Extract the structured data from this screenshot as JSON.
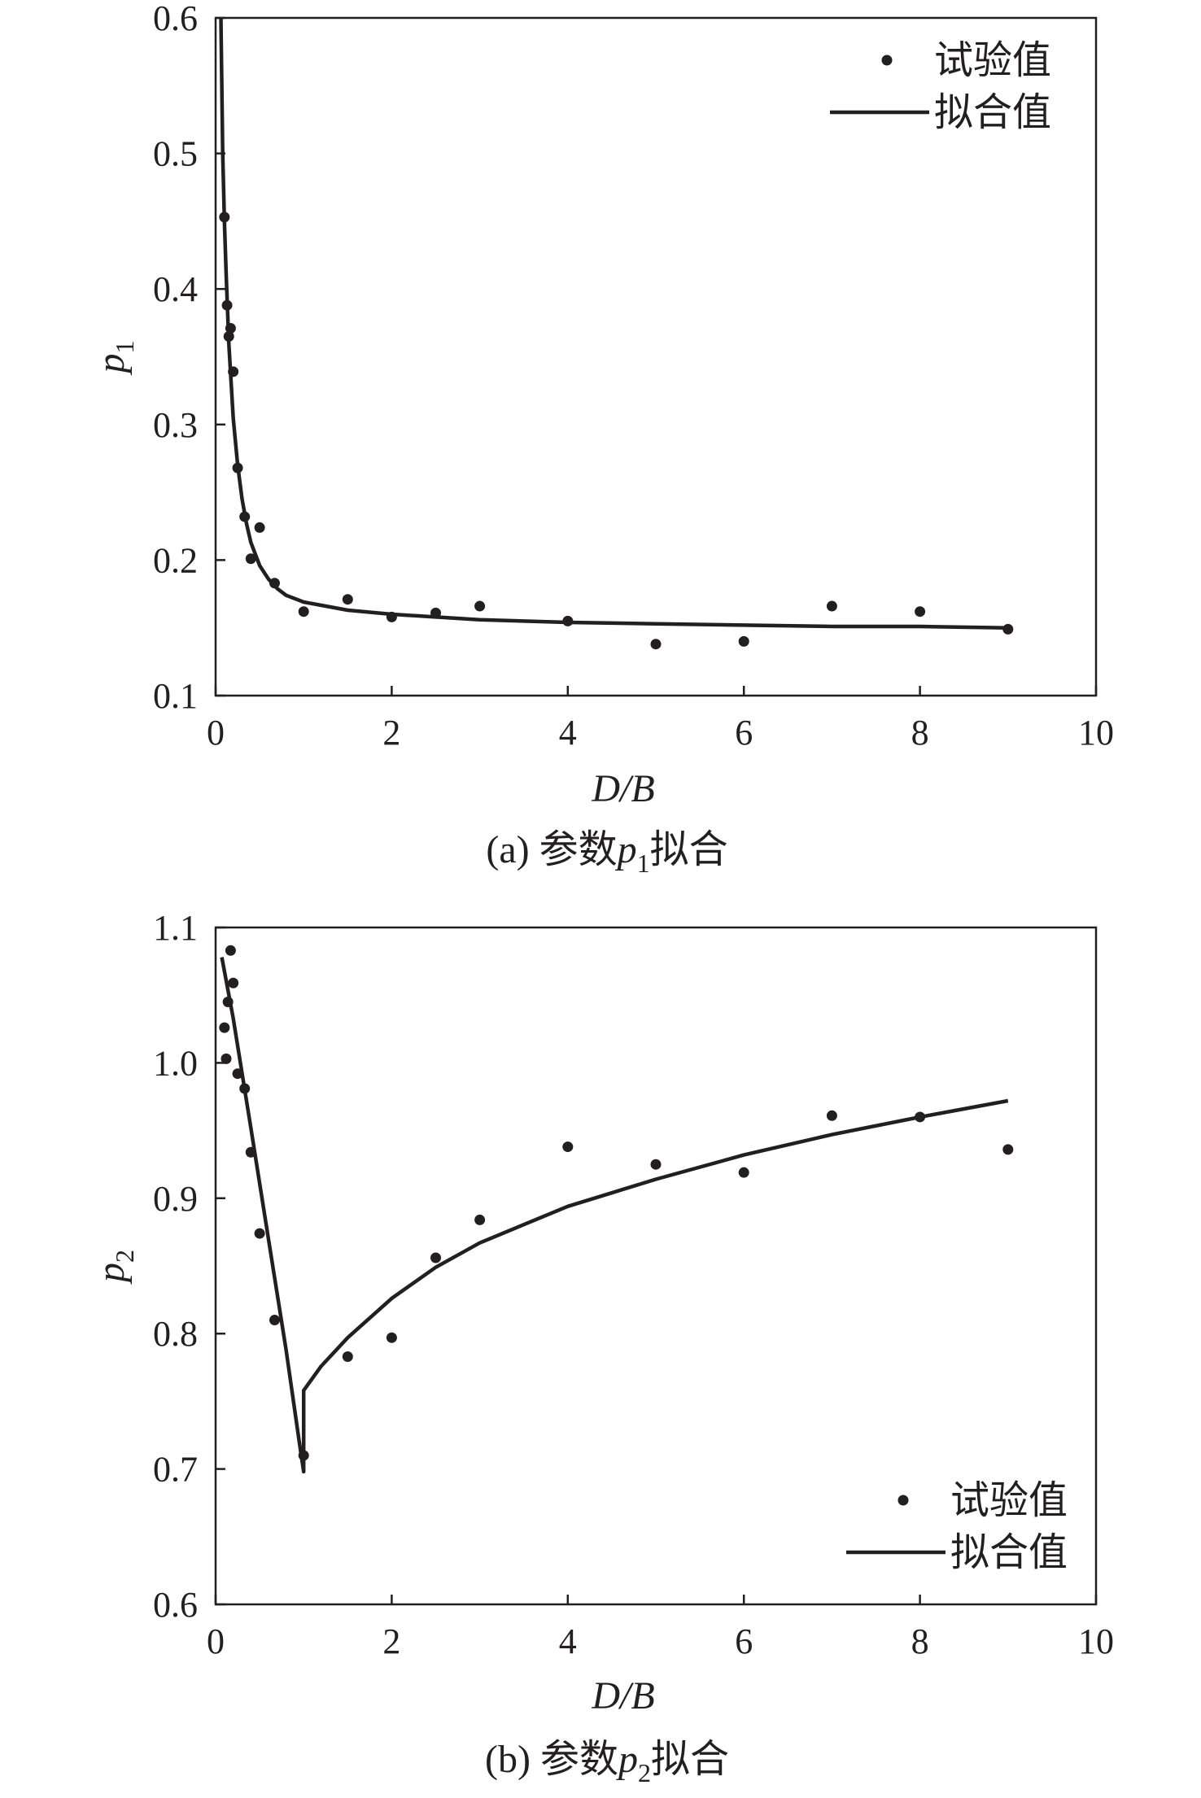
{
  "chart_data": [
    {
      "type": "scatter",
      "caption": "(a) 参数p₁拟合",
      "xlabel": "D/B",
      "ylabel": "p₁",
      "xlim": [
        0,
        10
      ],
      "ylim": [
        0.1,
        0.6
      ],
      "xticks": [
        0,
        2,
        4,
        6,
        8,
        10
      ],
      "yticks": [
        0.1,
        0.2,
        0.3,
        0.4,
        0.5,
        0.6
      ],
      "xtick_labels": [
        "0",
        "2",
        "4",
        "6",
        "8",
        "10"
      ],
      "ytick_labels": [
        "0.1",
        "0.2",
        "0.3",
        "0.4",
        "0.5",
        "0.6"
      ],
      "legend_position": "top-right",
      "legend": [
        "试验值",
        "拟合值"
      ],
      "grid": false,
      "series": [
        {
          "name": "试验值",
          "kind": "scatter",
          "points": [
            [
              0.1,
              0.453
            ],
            [
              0.13,
              0.388
            ],
            [
              0.15,
              0.365
            ],
            [
              0.17,
              0.371
            ],
            [
              0.2,
              0.339
            ],
            [
              0.25,
              0.268
            ],
            [
              0.33,
              0.232
            ],
            [
              0.4,
              0.201
            ],
            [
              0.5,
              0.224
            ],
            [
              0.67,
              0.183
            ],
            [
              1.0,
              0.162
            ],
            [
              1.5,
              0.171
            ],
            [
              2.0,
              0.158
            ],
            [
              2.5,
              0.161
            ],
            [
              3.0,
              0.166
            ],
            [
              4.0,
              0.155
            ],
            [
              5.0,
              0.138
            ],
            [
              6.0,
              0.14
            ],
            [
              7.0,
              0.166
            ],
            [
              8.0,
              0.162
            ],
            [
              9.0,
              0.149
            ]
          ]
        },
        {
          "name": "拟合值",
          "kind": "line",
          "points": [
            [
              0.06,
              0.6
            ],
            [
              0.08,
              0.5
            ],
            [
              0.1,
              0.45
            ],
            [
              0.12,
              0.41
            ],
            [
              0.15,
              0.36
            ],
            [
              0.2,
              0.305
            ],
            [
              0.25,
              0.27
            ],
            [
              0.3,
              0.245
            ],
            [
              0.35,
              0.227
            ],
            [
              0.4,
              0.213
            ],
            [
              0.5,
              0.196
            ],
            [
              0.6,
              0.186
            ],
            [
              0.7,
              0.179
            ],
            [
              0.8,
              0.174
            ],
            [
              1.0,
              0.169
            ],
            [
              1.25,
              0.166
            ],
            [
              1.5,
              0.163
            ],
            [
              2.0,
              0.16
            ],
            [
              2.5,
              0.158
            ],
            [
              3.0,
              0.156
            ],
            [
              4.0,
              0.154
            ],
            [
              5.0,
              0.153
            ],
            [
              6.0,
              0.152
            ],
            [
              7.0,
              0.151
            ],
            [
              8.0,
              0.151
            ],
            [
              9.0,
              0.15
            ]
          ]
        }
      ]
    },
    {
      "type": "scatter",
      "caption": "(b) 参数p₂拟合",
      "xlabel": "D/B",
      "ylabel": "p₂",
      "xlim": [
        0,
        10
      ],
      "ylim": [
        0.6,
        1.1
      ],
      "xticks": [
        0,
        2,
        4,
        6,
        8,
        10
      ],
      "yticks": [
        0.6,
        0.7,
        0.8,
        0.9,
        1.0,
        1.1
      ],
      "xtick_labels": [
        "0",
        "2",
        "4",
        "6",
        "8",
        "10"
      ],
      "ytick_labels": [
        "0.6",
        "0.7",
        "0.8",
        "0.9",
        "1.0",
        "1.1"
      ],
      "legend_position": "bottom-right",
      "legend": [
        "试验值",
        "拟合值"
      ],
      "grid": false,
      "series": [
        {
          "name": "试验值",
          "kind": "scatter",
          "points": [
            [
              0.1,
              1.026
            ],
            [
              0.12,
              1.003
            ],
            [
              0.14,
              1.045
            ],
            [
              0.17,
              1.083
            ],
            [
              0.2,
              1.059
            ],
            [
              0.25,
              0.992
            ],
            [
              0.33,
              0.981
            ],
            [
              0.4,
              0.934
            ],
            [
              0.5,
              0.874
            ],
            [
              0.67,
              0.81
            ],
            [
              1.0,
              0.71
            ],
            [
              1.5,
              0.783
            ],
            [
              2.0,
              0.797
            ],
            [
              2.5,
              0.856
            ],
            [
              3.0,
              0.884
            ],
            [
              4.0,
              0.938
            ],
            [
              5.0,
              0.925
            ],
            [
              6.0,
              0.919
            ],
            [
              7.0,
              0.961
            ],
            [
              8.0,
              0.96
            ],
            [
              9.0,
              0.936
            ]
          ]
        },
        {
          "name": "拟合值",
          "kind": "line",
          "points": [
            [
              0.07,
              1.078
            ],
            [
              0.2,
              1.033
            ],
            [
              0.4,
              0.952
            ],
            [
              0.6,
              0.87
            ],
            [
              0.8,
              0.788
            ],
            [
              0.95,
              0.72
            ],
            [
              1.0,
              0.698
            ],
            [
              1.0,
              0.758
            ],
            [
              1.2,
              0.776
            ],
            [
              1.5,
              0.797
            ],
            [
              2.0,
              0.826
            ],
            [
              2.5,
              0.849
            ],
            [
              3.0,
              0.867
            ],
            [
              4.0,
              0.894
            ],
            [
              5.0,
              0.914
            ],
            [
              6.0,
              0.932
            ],
            [
              7.0,
              0.947
            ],
            [
              8.0,
              0.96
            ],
            [
              9.0,
              0.972
            ]
          ]
        }
      ]
    }
  ]
}
